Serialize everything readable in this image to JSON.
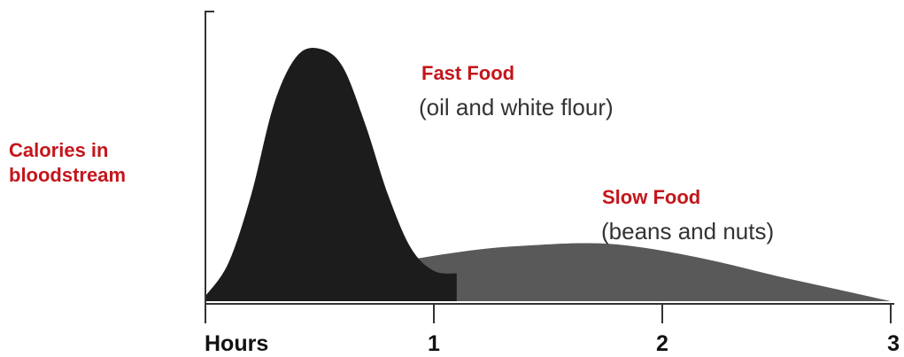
{
  "chart_data": {
    "type": "area",
    "title": "",
    "ylabel_lines": [
      "Calories in",
      "bloodstream"
    ],
    "xlabel": "Hours",
    "x_ticks": [
      {
        "value": 0,
        "label": ""
      },
      {
        "value": 1,
        "label": "1"
      },
      {
        "value": 2,
        "label": "2"
      },
      {
        "value": 3,
        "label": "3"
      }
    ],
    "xlim": [
      0,
      3
    ],
    "ylim": [
      0,
      1
    ],
    "grid": false,
    "series": [
      {
        "name": "Fast Food",
        "subtitle": "(oil and white flour)",
        "color": "#1c1c1c",
        "x": [
          0,
          0.1,
          0.2,
          0.3,
          0.4,
          0.5,
          0.6,
          0.7,
          0.8,
          0.9,
          1.0,
          1.1
        ],
        "y": [
          0.02,
          0.15,
          0.42,
          0.78,
          0.97,
          1.0,
          0.93,
          0.7,
          0.42,
          0.21,
          0.12,
          0.11
        ]
      },
      {
        "name": "Slow Food",
        "subtitle": "(beans and nuts)",
        "color": "#595959",
        "x": [
          0,
          0.25,
          0.5,
          0.75,
          1.0,
          1.25,
          1.5,
          1.65,
          1.8,
          2.0,
          2.25,
          2.5,
          2.75,
          3.0
        ],
        "y": [
          0.0,
          0.05,
          0.095,
          0.14,
          0.18,
          0.21,
          0.225,
          0.23,
          0.225,
          0.2,
          0.155,
          0.1,
          0.05,
          0.0
        ]
      }
    ]
  },
  "colors": {
    "label_red": "#c3161c",
    "axis": "#333333",
    "text_dark": "#111111",
    "text_grey": "#333333"
  }
}
